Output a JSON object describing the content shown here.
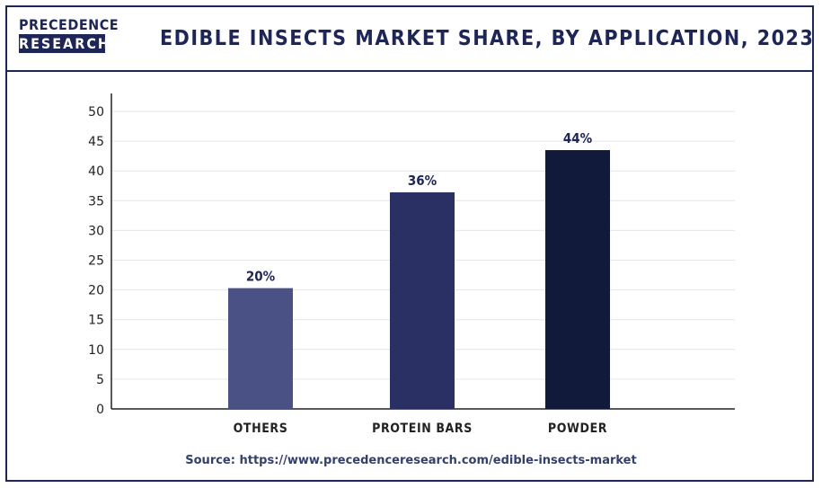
{
  "brand": {
    "line1": "PRECEDENCE",
    "line2": "RESEARCH"
  },
  "title": "EDIBLE INSECTS MARKET SHARE, BY APPLICATION, 2023 (%)",
  "source": "Source: https://www.precedenceresearch.com/edible-insects-market",
  "chart_data": {
    "type": "bar",
    "title": "EDIBLE INSECTS MARKET SHARE, BY APPLICATION, 2023 (%)",
    "categories": [
      "OTHERS",
      "PROTEIN BARS",
      "POWDER"
    ],
    "values": [
      20.3,
      36.4,
      43.5
    ],
    "data_labels": [
      "20%",
      "36%",
      "44%"
    ],
    "colors": [
      "#4a5185",
      "#2b3064",
      "#121a3b"
    ],
    "ylim": [
      0,
      50
    ],
    "yticks": [
      0,
      5,
      10,
      15,
      20,
      25,
      30,
      35,
      40,
      45,
      50
    ],
    "grid": true,
    "xlabel": "",
    "ylabel": ""
  }
}
